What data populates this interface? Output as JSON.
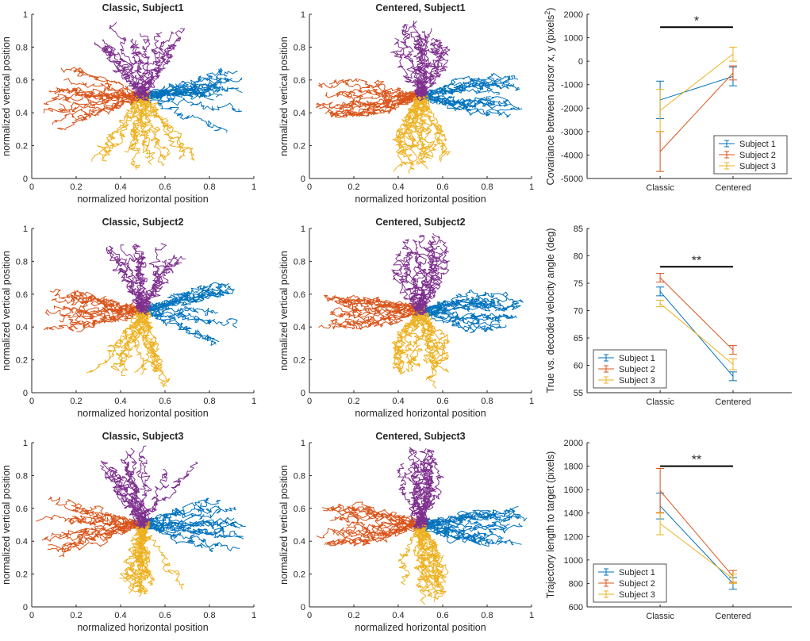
{
  "figure": {
    "colors": {
      "right": "#0072BD",
      "left": "#D95319",
      "down": "#EDB120",
      "up": "#7E2F8E",
      "axis": "#262626"
    },
    "trajectory_panels": [
      {
        "title": "Classic, Subject1",
        "mode": "classic",
        "seed": 11
      },
      {
        "title": "Centered, Subject1",
        "mode": "centered",
        "seed": 21
      },
      {
        "title": "Classic, Subject2",
        "mode": "classic",
        "seed": 31
      },
      {
        "title": "Centered, Subject2",
        "mode": "centered",
        "seed": 41
      },
      {
        "title": "Classic, Subject3",
        "mode": "classic",
        "seed": 51
      },
      {
        "title": "Centered, Subject3",
        "mode": "centered",
        "seed": 61
      }
    ],
    "trajectory_axes": {
      "xlabel": "normalized horizontal position",
      "ylabel": "normalized vertical position",
      "xlim": [
        0,
        1
      ],
      "ylim": [
        0,
        1
      ],
      "xticks": [
        "0",
        "0.2",
        "0.4",
        "0.6",
        "0.8",
        "1"
      ],
      "yticks": [
        "0",
        "0.2",
        "0.4",
        "0.6",
        "0.8",
        "1"
      ]
    }
  },
  "chart_data": [
    {
      "type": "line",
      "ylabel": "Covariance between cursor x, y (pixels²)",
      "ylabel_main": "Covariance between cursor x, y (pixels",
      "ylabel_sup": "2",
      "ylabel_end": ")",
      "categories": [
        "Classic",
        "Centered"
      ],
      "ylim": [
        -5000,
        2000
      ],
      "yticks": [
        -5000,
        -4000,
        -3000,
        -2000,
        -1000,
        0,
        1000,
        2000
      ],
      "ytick_labels": [
        "-5000",
        "-4000",
        "-3000",
        "-2000",
        "-1000",
        "0",
        "1000",
        "2000"
      ],
      "significance": "*",
      "significance_y": 1450,
      "legend_position": "bottom-right",
      "series": [
        {
          "name": "Subject 1",
          "values": [
            -1650,
            -650
          ],
          "errors": [
            800,
            400
          ]
        },
        {
          "name": "Subject 2",
          "values": [
            -3850,
            -500
          ],
          "errors": [
            850,
            300
          ]
        },
        {
          "name": "Subject 3",
          "values": [
            -2100,
            300
          ],
          "errors": [
            900,
            300
          ]
        }
      ]
    },
    {
      "type": "line",
      "ylabel": "True vs. decoded velocity angle (deg)",
      "categories": [
        "Classic",
        "Centered"
      ],
      "ylim": [
        55,
        85
      ],
      "yticks": [
        55,
        60,
        65,
        70,
        75,
        80,
        85
      ],
      "ytick_labels": [
        "55",
        "60",
        "65",
        "70",
        "75",
        "80",
        "85"
      ],
      "significance": "**",
      "significance_y": 78,
      "legend_position": "bottom-left",
      "series": [
        {
          "name": "Subject 1",
          "values": [
            73.5,
            58.0
          ],
          "errors": [
            0.8,
            0.8
          ]
        },
        {
          "name": "Subject 2",
          "values": [
            76.0,
            62.8
          ],
          "errors": [
            0.8,
            0.8
          ]
        },
        {
          "name": "Subject 3",
          "values": [
            71.3,
            60.2
          ],
          "errors": [
            0.6,
            1.0
          ]
        }
      ]
    },
    {
      "type": "line",
      "ylabel": "Trajectory length to target (pixels)",
      "categories": [
        "Classic",
        "Centered"
      ],
      "ylim": [
        600,
        2000
      ],
      "yticks": [
        600,
        800,
        1000,
        1200,
        1400,
        1600,
        1800,
        2000
      ],
      "ytick_labels": [
        "600",
        "800",
        "1000",
        "1200",
        "1400",
        "1600",
        "1800",
        "2000"
      ],
      "significance": "**",
      "significance_y": 1800,
      "legend_position": "bottom-left",
      "series": [
        {
          "name": "Subject 1",
          "values": [
            1460,
            800
          ],
          "errors": [
            110,
            50
          ]
        },
        {
          "name": "Subject 2",
          "values": [
            1590,
            860
          ],
          "errors": [
            190,
            50
          ]
        },
        {
          "name": "Subject 3",
          "values": [
            1310,
            840
          ],
          "errors": [
            95,
            40
          ]
        }
      ]
    }
  ]
}
